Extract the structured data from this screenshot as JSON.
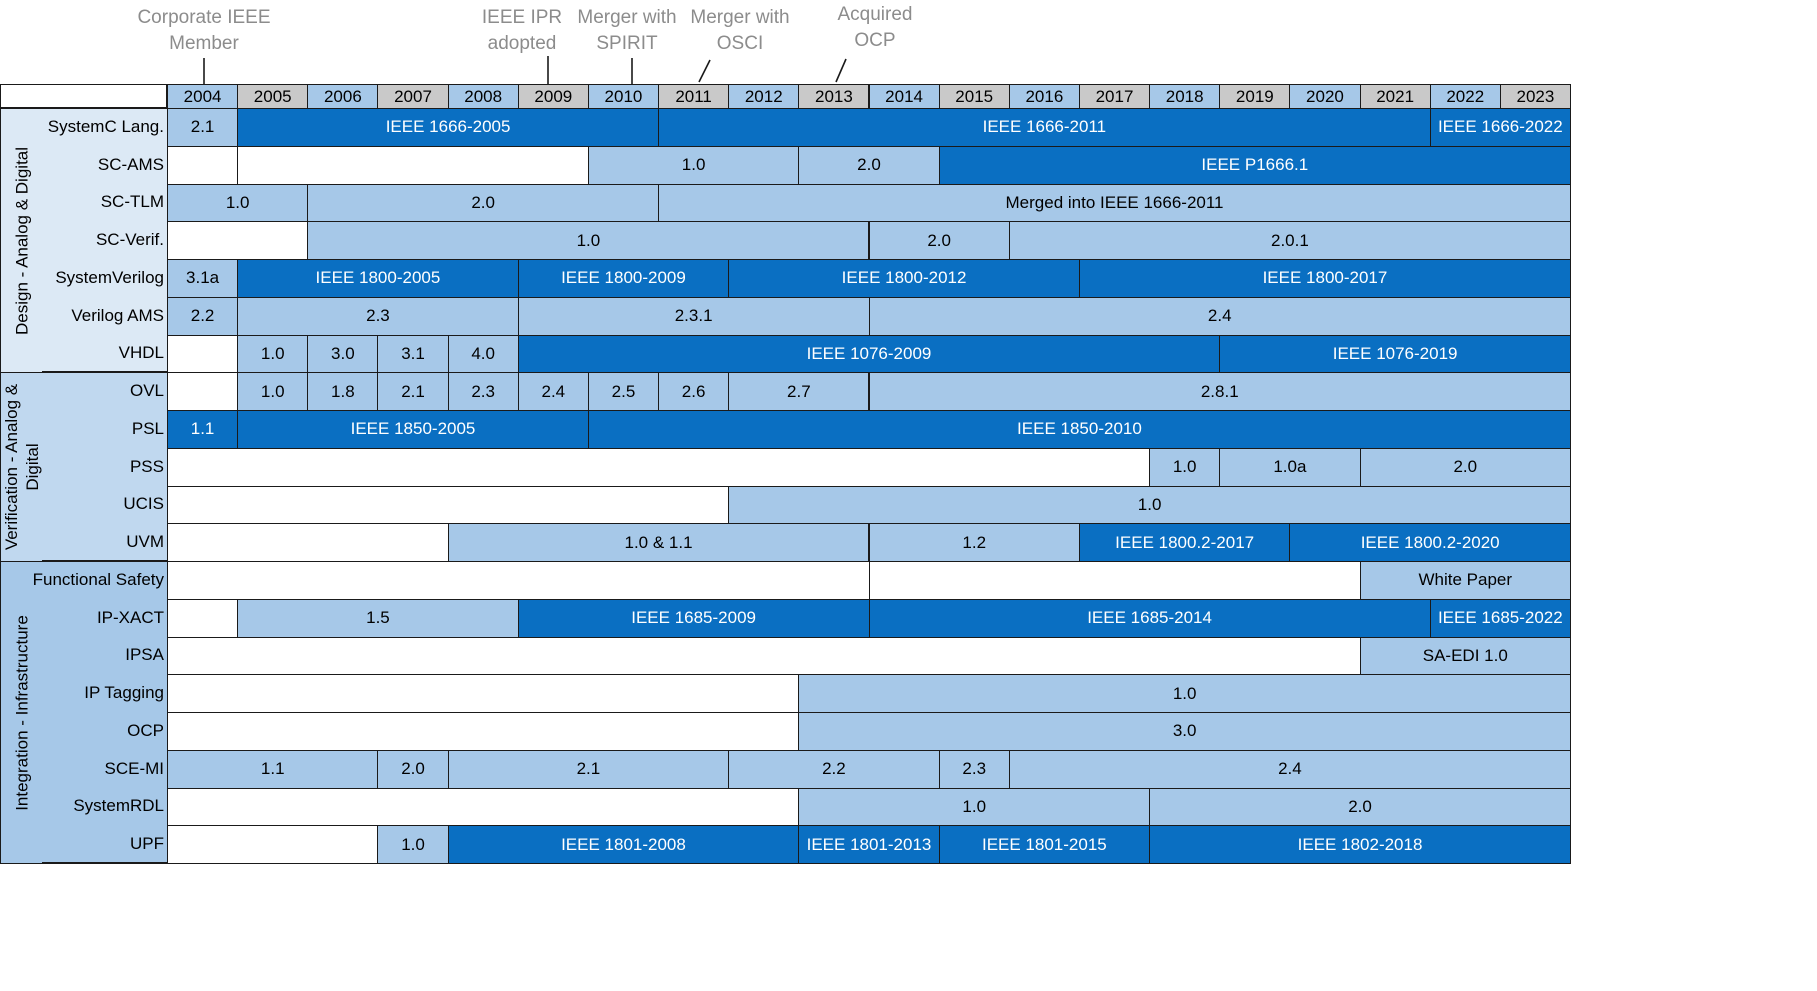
{
  "years": [
    "2004",
    "2005",
    "2006",
    "2007",
    "2008",
    "2009",
    "2010",
    "2011",
    "2012",
    "2013",
    "2014",
    "2015",
    "2016",
    "2017",
    "2018",
    "2019",
    "2020",
    "2021",
    "2022",
    "2023"
  ],
  "year_header_colors": [
    "#a6c8e8",
    "#c9c9c9",
    "#a6c8e8",
    "#c9c9c9",
    "#a6c8e8",
    "#c9c9c9",
    "#a6c8e8",
    "#c9c9c9",
    "#a6c8e8",
    "#c9c9c9",
    "#a6c8e8",
    "#c9c9c9",
    "#a6c8e8",
    "#c9c9c9",
    "#a6c8e8",
    "#c9c9c9",
    "#a6c8e8",
    "#c9c9c9",
    "#a6c8e8",
    "#c9c9c9"
  ],
  "colors": {
    "light": "#a6c8e8",
    "dark": "#0a6fc2",
    "white": "#ffffff",
    "cat_design": "#dce9f5",
    "cat_verification": "#c0d8ef",
    "cat_integration": "#a6c8e8",
    "event_text": "#8c8c8c"
  },
  "events": [
    {
      "lines": [
        "Corporate IEEE",
        "Member"
      ],
      "year_index": 0
    },
    {
      "lines": [
        "IEEE IPR",
        "adopted"
      ],
      "year_index": 5
    },
    {
      "lines": [
        "Merger with",
        "SPIRIT"
      ],
      "year_index": 6
    },
    {
      "lines": [
        "Merger with",
        "OSCI"
      ],
      "year_index": 7
    },
    {
      "lines": [
        "Acquired",
        "OCP"
      ],
      "year_index": 9
    }
  ],
  "categories": [
    {
      "name": "Design - Analog & Digital",
      "rows": 7,
      "color_key": "cat_design"
    },
    {
      "name": "Verification - Analog & Digital",
      "rows": 5,
      "color_key": "cat_verification"
    },
    {
      "name": "Integration - Infrastructure",
      "rows": 8,
      "color_key": "cat_integration"
    }
  ],
  "rows": [
    {
      "name": "SystemC Lang.",
      "segments": [
        {
          "s": 0,
          "e": 1,
          "label": "2.1",
          "style": "light"
        },
        {
          "s": 1,
          "e": 7,
          "label": "IEEE 1666-2005",
          "style": "dark"
        },
        {
          "s": 7,
          "e": 18,
          "label": "IEEE 1666-2011",
          "style": "dark"
        },
        {
          "s": 18,
          "e": 20,
          "label": "IEEE 1666-2022",
          "style": "dark"
        }
      ]
    },
    {
      "name": "SC-AMS",
      "segments": [
        {
          "s": 0,
          "e": 1,
          "label": "",
          "style": "white"
        },
        {
          "s": 1,
          "e": 6,
          "label": "",
          "style": "white"
        },
        {
          "s": 6,
          "e": 9,
          "label": "1.0",
          "style": "light"
        },
        {
          "s": 9,
          "e": 11,
          "label": "2.0",
          "style": "light"
        },
        {
          "s": 11,
          "e": 20,
          "label": "IEEE P1666.1",
          "style": "dark"
        }
      ]
    },
    {
      "name": "SC-TLM",
      "segments": [
        {
          "s": 0,
          "e": 2,
          "label": "1.0",
          "style": "light"
        },
        {
          "s": 2,
          "e": 7,
          "label": "2.0",
          "style": "light"
        },
        {
          "s": 7,
          "e": 20,
          "label": "Merged into IEEE 1666-2011",
          "style": "light"
        }
      ]
    },
    {
      "name": "SC-Verif.",
      "segments": [
        {
          "s": 0,
          "e": 2,
          "label": "",
          "style": "white"
        },
        {
          "s": 2,
          "e": 10,
          "label": "1.0",
          "style": "light"
        },
        {
          "s": 10,
          "e": 12,
          "label": "2.0",
          "style": "light"
        },
        {
          "s": 12,
          "e": 20,
          "label": "2.0.1",
          "style": "light"
        }
      ]
    },
    {
      "name": "SystemVerilog",
      "segments": [
        {
          "s": 0,
          "e": 1,
          "label": "3.1a",
          "style": "light"
        },
        {
          "s": 1,
          "e": 5,
          "label": "IEEE 1800-2005",
          "style": "dark"
        },
        {
          "s": 5,
          "e": 8,
          "label": "IEEE 1800-2009",
          "style": "dark"
        },
        {
          "s": 8,
          "e": 13,
          "label": "IEEE 1800-2012",
          "style": "dark"
        },
        {
          "s": 13,
          "e": 20,
          "label": "IEEE 1800-2017",
          "style": "dark"
        }
      ]
    },
    {
      "name": "Verilog AMS",
      "segments": [
        {
          "s": 0,
          "e": 1,
          "label": "2.2",
          "style": "light"
        },
        {
          "s": 1,
          "e": 5,
          "label": "2.3",
          "style": "light"
        },
        {
          "s": 5,
          "e": 10,
          "label": "2.3.1",
          "style": "light"
        },
        {
          "s": 10,
          "e": 20,
          "label": "2.4",
          "style": "light"
        }
      ]
    },
    {
      "name": "VHDL",
      "segments": [
        {
          "s": 0,
          "e": 1,
          "label": "",
          "style": "white"
        },
        {
          "s": 1,
          "e": 2,
          "label": "1.0",
          "style": "light"
        },
        {
          "s": 2,
          "e": 3,
          "label": "3.0",
          "style": "light"
        },
        {
          "s": 3,
          "e": 4,
          "label": "3.1",
          "style": "light"
        },
        {
          "s": 4,
          "e": 5,
          "label": "4.0",
          "style": "light"
        },
        {
          "s": 5,
          "e": 15,
          "label": "IEEE 1076-2009",
          "style": "dark"
        },
        {
          "s": 15,
          "e": 20,
          "label": "IEEE 1076-2019",
          "style": "dark"
        }
      ]
    },
    {
      "name": "OVL",
      "segments": [
        {
          "s": 0,
          "e": 1,
          "label": "",
          "style": "white"
        },
        {
          "s": 1,
          "e": 2,
          "label": "1.0",
          "style": "light"
        },
        {
          "s": 2,
          "e": 3,
          "label": "1.8",
          "style": "light"
        },
        {
          "s": 3,
          "e": 4,
          "label": "2.1",
          "style": "light"
        },
        {
          "s": 4,
          "e": 5,
          "label": "2.3",
          "style": "light"
        },
        {
          "s": 5,
          "e": 6,
          "label": "2.4",
          "style": "light"
        },
        {
          "s": 6,
          "e": 7,
          "label": "2.5",
          "style": "light"
        },
        {
          "s": 7,
          "e": 8,
          "label": "2.6",
          "style": "light"
        },
        {
          "s": 8,
          "e": 10,
          "label": "2.7",
          "style": "light"
        },
        {
          "s": 10,
          "e": 20,
          "label": "2.8.1",
          "style": "light"
        }
      ]
    },
    {
      "name": "PSL",
      "segments": [
        {
          "s": 0,
          "e": 1,
          "label": "1.1",
          "style": "dark"
        },
        {
          "s": 1,
          "e": 6,
          "label": "IEEE 1850-2005",
          "style": "dark"
        },
        {
          "s": 6,
          "e": 20,
          "label": "IEEE 1850-2010",
          "style": "dark"
        }
      ]
    },
    {
      "name": "PSS",
      "segments": [
        {
          "s": 0,
          "e": 14,
          "label": "",
          "style": "white"
        },
        {
          "s": 14,
          "e": 15,
          "label": "1.0",
          "style": "light"
        },
        {
          "s": 15,
          "e": 17,
          "label": "1.0a",
          "style": "light"
        },
        {
          "s": 17,
          "e": 20,
          "label": "2.0",
          "style": "light"
        }
      ]
    },
    {
      "name": "UCIS",
      "segments": [
        {
          "s": 0,
          "e": 8,
          "label": "",
          "style": "white"
        },
        {
          "s": 8,
          "e": 20,
          "label": "1.0",
          "style": "light"
        }
      ]
    },
    {
      "name": "UVM",
      "segments": [
        {
          "s": 0,
          "e": 4,
          "label": "",
          "style": "white"
        },
        {
          "s": 4,
          "e": 10,
          "label": "1.0  & 1.1",
          "style": "light"
        },
        {
          "s": 10,
          "e": 13,
          "label": "1.2",
          "style": "light"
        },
        {
          "s": 13,
          "e": 16,
          "label": "IEEE  1800.2-2017",
          "style": "dark"
        },
        {
          "s": 16,
          "e": 20,
          "label": "IEEE 1800.2-2020",
          "style": "dark"
        }
      ]
    },
    {
      "name": "Functional Safety",
      "segments": [
        {
          "s": 0,
          "e": 10,
          "label": "",
          "style": "white"
        },
        {
          "s": 10,
          "e": 17,
          "label": "",
          "style": "white"
        },
        {
          "s": 17,
          "e": 20,
          "label": "White Paper",
          "style": "light"
        }
      ]
    },
    {
      "name": "IP-XACT",
      "segments": [
        {
          "s": 0,
          "e": 1,
          "label": "",
          "style": "white"
        },
        {
          "s": 1,
          "e": 5,
          "label": "1.5",
          "style": "light"
        },
        {
          "s": 5,
          "e": 10,
          "label": "IEEE 1685-2009",
          "style": "dark"
        },
        {
          "s": 10,
          "e": 18,
          "label": "IEEE 1685-2014",
          "style": "dark"
        },
        {
          "s": 18,
          "e": 20,
          "label": "IEEE 1685-2022",
          "style": "dark"
        }
      ]
    },
    {
      "name": "IPSA",
      "segments": [
        {
          "s": 0,
          "e": 17,
          "label": "",
          "style": "white"
        },
        {
          "s": 17,
          "e": 20,
          "label": "SA-EDI 1.0",
          "style": "light"
        }
      ]
    },
    {
      "name": "IP Tagging",
      "segments": [
        {
          "s": 0,
          "e": 9,
          "label": "",
          "style": "white"
        },
        {
          "s": 9,
          "e": 20,
          "label": "1.0",
          "style": "light"
        }
      ]
    },
    {
      "name": "OCP",
      "segments": [
        {
          "s": 0,
          "e": 9,
          "label": "",
          "style": "white"
        },
        {
          "s": 9,
          "e": 20,
          "label": "3.0",
          "style": "light"
        }
      ]
    },
    {
      "name": "SCE-MI",
      "segments": [
        {
          "s": 0,
          "e": 3,
          "label": "1.1",
          "style": "light"
        },
        {
          "s": 3,
          "e": 4,
          "label": "2.0",
          "style": "light"
        },
        {
          "s": 4,
          "e": 8,
          "label": "2.1",
          "style": "light"
        },
        {
          "s": 8,
          "e": 11,
          "label": "2.2",
          "style": "light"
        },
        {
          "s": 11,
          "e": 12,
          "label": "2.3",
          "style": "light"
        },
        {
          "s": 12,
          "e": 20,
          "label": "2.4",
          "style": "light"
        }
      ]
    },
    {
      "name": "SystemRDL",
      "segments": [
        {
          "s": 0,
          "e": 9,
          "label": "",
          "style": "white"
        },
        {
          "s": 9,
          "e": 14,
          "label": "1.0",
          "style": "light"
        },
        {
          "s": 14,
          "e": 20,
          "label": "2.0",
          "style": "light"
        }
      ]
    },
    {
      "name": "UPF",
      "segments": [
        {
          "s": 0,
          "e": 3,
          "label": "",
          "style": "white"
        },
        {
          "s": 3,
          "e": 4,
          "label": "1.0",
          "style": "light"
        },
        {
          "s": 4,
          "e": 9,
          "label": "IEEE 1801-2008",
          "style": "dark"
        },
        {
          "s": 9,
          "e": 11,
          "label": "IEEE 1801-2013",
          "style": "dark"
        },
        {
          "s": 11,
          "e": 14,
          "label": "IEEE 1801-2015",
          "style": "dark"
        },
        {
          "s": 14,
          "e": 20,
          "label": "IEEE 1802-2018",
          "style": "dark"
        }
      ]
    }
  ]
}
